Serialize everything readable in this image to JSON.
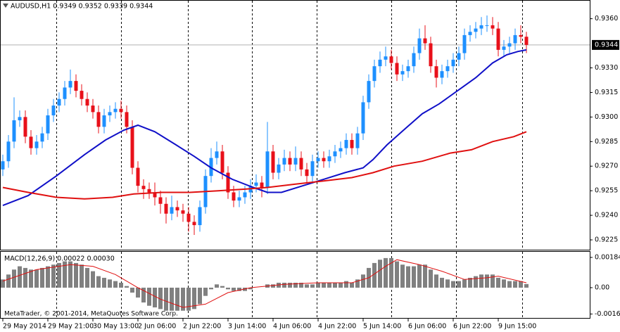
{
  "chart_data": [
    {
      "type": "candlestick",
      "title": "AUDUSD,H1  0.9349 0.9352 0.9339 0.9344",
      "up_color": "#1e90ff",
      "down_color": "#e8101a",
      "open": [
        0.9268,
        0.9273,
        0.9285,
        0.9298,
        0.93,
        0.9288,
        0.9281,
        0.9285,
        0.929,
        0.9301,
        0.9307,
        0.9311,
        0.9318,
        0.9322,
        0.9316,
        0.9311,
        0.9307,
        0.9303,
        0.9294,
        0.9301,
        0.9303,
        0.9305,
        0.9303,
        0.9294,
        0.9269,
        0.9258,
        0.9256,
        0.9254,
        0.9251,
        0.9247,
        0.9241,
        0.9245,
        0.9243,
        0.9241,
        0.9236,
        0.9234,
        0.9245,
        0.9264,
        0.9275,
        0.9279,
        0.9266,
        0.9254,
        0.9249,
        0.9251,
        0.9254,
        0.9258,
        0.926,
        0.9257,
        0.9279,
        0.9266,
        0.9271,
        0.9275,
        0.9271,
        0.9275,
        0.9268,
        0.9264,
        0.9273,
        0.9275,
        0.9273,
        0.9276,
        0.9279,
        0.9281,
        0.9286,
        0.9281,
        0.929,
        0.9309,
        0.9322,
        0.9331,
        0.9335,
        0.9337,
        0.9333,
        0.9326,
        0.9328,
        0.9331,
        0.9339,
        0.9348,
        0.9345,
        0.9331,
        0.9324,
        0.9328,
        0.9331,
        0.9335,
        0.9339,
        0.935,
        0.9352,
        0.9354,
        0.9356,
        0.9356,
        0.9354,
        0.9341,
        0.9343,
        0.9345,
        0.935,
        0.9349
      ],
      "high": [
        0.9277,
        0.9289,
        0.9312,
        0.9304,
        0.9304,
        0.9292,
        0.9289,
        0.9294,
        0.9305,
        0.9311,
        0.9315,
        0.9322,
        0.9329,
        0.9326,
        0.932,
        0.9315,
        0.9311,
        0.9307,
        0.9305,
        0.9307,
        0.9309,
        0.931,
        0.9307,
        0.9298,
        0.9273,
        0.9262,
        0.926,
        0.926,
        0.9255,
        0.9251,
        0.9252,
        0.9249,
        0.9247,
        0.9245,
        0.924,
        0.9249,
        0.9268,
        0.9281,
        0.9285,
        0.9283,
        0.927,
        0.9258,
        0.9255,
        0.9258,
        0.9262,
        0.9265,
        0.9264,
        0.9297,
        0.9283,
        0.9275,
        0.928,
        0.9279,
        0.9282,
        0.9279,
        0.9272,
        0.9277,
        0.9279,
        0.9279,
        0.928,
        0.9283,
        0.9285,
        0.929,
        0.929,
        0.9294,
        0.9313,
        0.9326,
        0.9335,
        0.934,
        0.9343,
        0.9341,
        0.9337,
        0.9332,
        0.9335,
        0.9343,
        0.9354,
        0.9356,
        0.9349,
        0.9335,
        0.9332,
        0.9335,
        0.9339,
        0.9343,
        0.9354,
        0.9356,
        0.9358,
        0.9361,
        0.9362,
        0.9361,
        0.9358,
        0.9347,
        0.9349,
        0.9354,
        0.9356,
        0.9352
      ],
      "low": [
        0.9264,
        0.9269,
        0.9281,
        0.9294,
        0.9284,
        0.9277,
        0.9277,
        0.9281,
        0.9286,
        0.9297,
        0.9303,
        0.9307,
        0.9314,
        0.9312,
        0.9307,
        0.9303,
        0.9299,
        0.929,
        0.929,
        0.9297,
        0.9299,
        0.9299,
        0.929,
        0.9265,
        0.9254,
        0.925,
        0.925,
        0.9246,
        0.9241,
        0.9235,
        0.9237,
        0.9239,
        0.9236,
        0.923,
        0.9228,
        0.923,
        0.9241,
        0.926,
        0.9271,
        0.9262,
        0.925,
        0.9245,
        0.9245,
        0.9247,
        0.925,
        0.9254,
        0.9251,
        0.9253,
        0.9262,
        0.9262,
        0.9267,
        0.9267,
        0.9267,
        0.9264,
        0.926,
        0.926,
        0.9269,
        0.9269,
        0.9269,
        0.9272,
        0.9275,
        0.9277,
        0.9277,
        0.9277,
        0.9286,
        0.9305,
        0.9318,
        0.9327,
        0.9331,
        0.9329,
        0.9322,
        0.9322,
        0.9324,
        0.9327,
        0.9335,
        0.9341,
        0.9327,
        0.9318,
        0.932,
        0.9324,
        0.9327,
        0.9331,
        0.9335,
        0.9346,
        0.9348,
        0.935,
        0.9352,
        0.935,
        0.9337,
        0.9337,
        0.9339,
        0.9341,
        0.9345,
        0.9339
      ],
      "close": [
        0.9273,
        0.9285,
        0.9298,
        0.93,
        0.9288,
        0.9281,
        0.9285,
        0.929,
        0.9301,
        0.9307,
        0.9311,
        0.9318,
        0.9322,
        0.9316,
        0.9311,
        0.9307,
        0.9303,
        0.9294,
        0.9301,
        0.9303,
        0.9305,
        0.9303,
        0.9294,
        0.9269,
        0.9258,
        0.9256,
        0.9254,
        0.9251,
        0.9247,
        0.9241,
        0.9245,
        0.9243,
        0.9241,
        0.9236,
        0.9234,
        0.9245,
        0.9264,
        0.9275,
        0.9279,
        0.9266,
        0.9254,
        0.9249,
        0.9251,
        0.9254,
        0.9258,
        0.926,
        0.9257,
        0.9279,
        0.9266,
        0.9271,
        0.9275,
        0.9271,
        0.9275,
        0.9268,
        0.9264,
        0.9273,
        0.9275,
        0.9273,
        0.9276,
        0.9279,
        0.9281,
        0.9286,
        0.9281,
        0.929,
        0.9309,
        0.9322,
        0.9331,
        0.9335,
        0.9337,
        0.9333,
        0.9326,
        0.9328,
        0.9331,
        0.9339,
        0.9348,
        0.9345,
        0.9331,
        0.9324,
        0.9328,
        0.9331,
        0.9335,
        0.9339,
        0.935,
        0.9352,
        0.9354,
        0.9356,
        0.9356,
        0.9354,
        0.9341,
        0.9343,
        0.9345,
        0.935,
        0.9349,
        0.9344
      ],
      "series": [
        {
          "color": "#1010c8",
          "x": [
            0,
            4.5,
            9.5,
            14.5,
            18.25,
            21.5,
            24,
            27,
            30.75,
            34,
            37,
            40.75,
            44.5,
            47,
            49.5,
            53.25,
            57,
            60.75,
            64,
            65.75,
            68.25,
            71.5,
            74.5,
            77.5,
            80.75,
            84,
            87,
            89.5,
            91.5,
            93
          ],
          "values": [
            0.9246,
            0.9252,
            0.9264,
            0.9277,
            0.9286,
            0.9292,
            0.9295,
            0.9291,
            0.9283,
            0.9276,
            0.9269,
            0.9262,
            0.9257,
            0.9254,
            0.9254,
            0.9258,
            0.9262,
            0.9266,
            0.9269,
            0.9274,
            0.9283,
            0.9293,
            0.9302,
            0.9308,
            0.9316,
            0.9324,
            0.9333,
            0.9338,
            0.934,
            0.9341
          ]
        },
        {
          "color": "#e01010",
          "x": [
            0,
            4.5,
            9.5,
            14.5,
            19.5,
            23.25,
            28.25,
            33.25,
            38.25,
            43.25,
            47,
            52,
            57,
            62,
            65.75,
            69.5,
            74.5,
            79.5,
            83.25,
            87,
            90.75,
            93
          ],
          "values": [
            0.9257,
            0.9254,
            0.9251,
            0.925,
            0.9251,
            0.9253,
            0.9254,
            0.9254,
            0.9255,
            0.9256,
            0.9257,
            0.9259,
            0.9261,
            0.9263,
            0.9266,
            0.927,
            0.9273,
            0.9278,
            0.928,
            0.9285,
            0.9288,
            0.9291
          ]
        }
      ],
      "last_price": 0.9344,
      "xlim": [
        -0.5,
        104.25
      ],
      "ylim": [
        0.9219,
        0.9371
      ],
      "yticks": [
        {
          "value": 0.936,
          "label": "0.9360"
        },
        {
          "value": 0.933,
          "label": "0.9330"
        },
        {
          "value": 0.9315,
          "label": "0.9315"
        },
        {
          "value": 0.93,
          "label": "0.9300"
        },
        {
          "value": 0.9285,
          "label": "0.9285"
        },
        {
          "value": 0.927,
          "label": "0.9270"
        },
        {
          "value": 0.9255,
          "label": "0.9255"
        },
        {
          "value": 0.924,
          "label": "0.9240"
        },
        {
          "value": 0.9225,
          "label": "0.9225"
        }
      ],
      "xticks": [
        {
          "value": 0,
          "label": "29 May 2014"
        },
        {
          "value": 8,
          "label": "29 May 21:00"
        },
        {
          "value": 16,
          "label": "30 May 13:00"
        },
        {
          "value": 24,
          "label": "2 Jun 06:00"
        },
        {
          "value": 32,
          "label": "2 Jun 22:00"
        },
        {
          "value": 40,
          "label": "3 Jun 14:00"
        },
        {
          "value": 48,
          "label": "4 Jun 06:00"
        },
        {
          "value": 56,
          "label": "4 Jun 22:00"
        },
        {
          "value": 64,
          "label": "5 Jun 14:00"
        },
        {
          "value": 72,
          "label": "6 Jun 06:00"
        },
        {
          "value": 80,
          "label": "6 Jun 22:00"
        },
        {
          "value": 88,
          "label": "9 Jun 15:00"
        }
      ]
    },
    {
      "type": "bar",
      "title": "MACD(12,26,9) 0.00022 0.00030",
      "footer": "MetaTrader, © 2001-2014, MetaQuotes Software Corp.",
      "color": "#808080",
      "values": [
        0.0005,
        0.0008,
        0.0011,
        0.0013,
        0.0012,
        0.0011,
        0.0011,
        0.0012,
        0.0013,
        0.0014,
        0.0015,
        0.0016,
        0.0016,
        0.0015,
        0.0014,
        0.0012,
        0.001,
        0.0007,
        0.0006,
        0.0005,
        0.0004,
        0.0003,
        0.0001,
        -0.0003,
        -0.0006,
        -0.0009,
        -0.0011,
        -0.0012,
        -0.0013,
        -0.0014,
        -0.0014,
        -0.0014,
        -0.0014,
        -0.0014,
        -0.0013,
        -0.001,
        -0.0005,
        -0.0001,
        0.0002,
        0.0001,
        -0.0001,
        -0.0002,
        -0.0002,
        -0.0002,
        -0.0001,
        0,
        0,
        0.0002,
        0.0002,
        0.0003,
        0.0003,
        0.0003,
        0.0003,
        0.0003,
        0.0002,
        0.0002,
        0.0003,
        0.0003,
        0.0003,
        0.0003,
        0.0003,
        0.0004,
        0.0003,
        0.0005,
        0.0008,
        0.0012,
        0.0015,
        0.0017,
        0.0018,
        0.0018,
        0.0016,
        0.0014,
        0.0013,
        0.0013,
        0.0014,
        0.0014,
        0.0011,
        0.0008,
        0.0006,
        0.0005,
        0.0004,
        0.0004,
        0.0005,
        0.0006,
        0.0007,
        0.0008,
        0.0008,
        0.0008,
        0.0006,
        0.0005,
        0.0004,
        0.0004,
        0.0004,
        0.00022
      ],
      "series": [
        {
          "color": "#e01010",
          "x": [
            0,
            6,
            12,
            16,
            20,
            24,
            28,
            32,
            36,
            40,
            44,
            50,
            56,
            62,
            65,
            68,
            70,
            74,
            78,
            82,
            86,
            88,
            93
          ],
          "values": [
            0.0004,
            0.0011,
            0.0014,
            0.0013,
            0.0008,
            0,
            -0.0007,
            -0.0012,
            -0.001,
            -0.0003,
            0,
            0.0002,
            0.0003,
            0.0003,
            0.0006,
            0.0013,
            0.0017,
            0.0014,
            0.001,
            0.0005,
            0.0006,
            0.0007,
            0.0003
          ]
        }
      ],
      "xlim": [
        -0.5,
        104.25
      ],
      "ylim": [
        -0.00184,
        0.00218
      ],
      "yticks": [
        0.00184,
        {
          "value": 0,
          "label": "0.00"
        },
        -0.0016
      ]
    }
  ]
}
